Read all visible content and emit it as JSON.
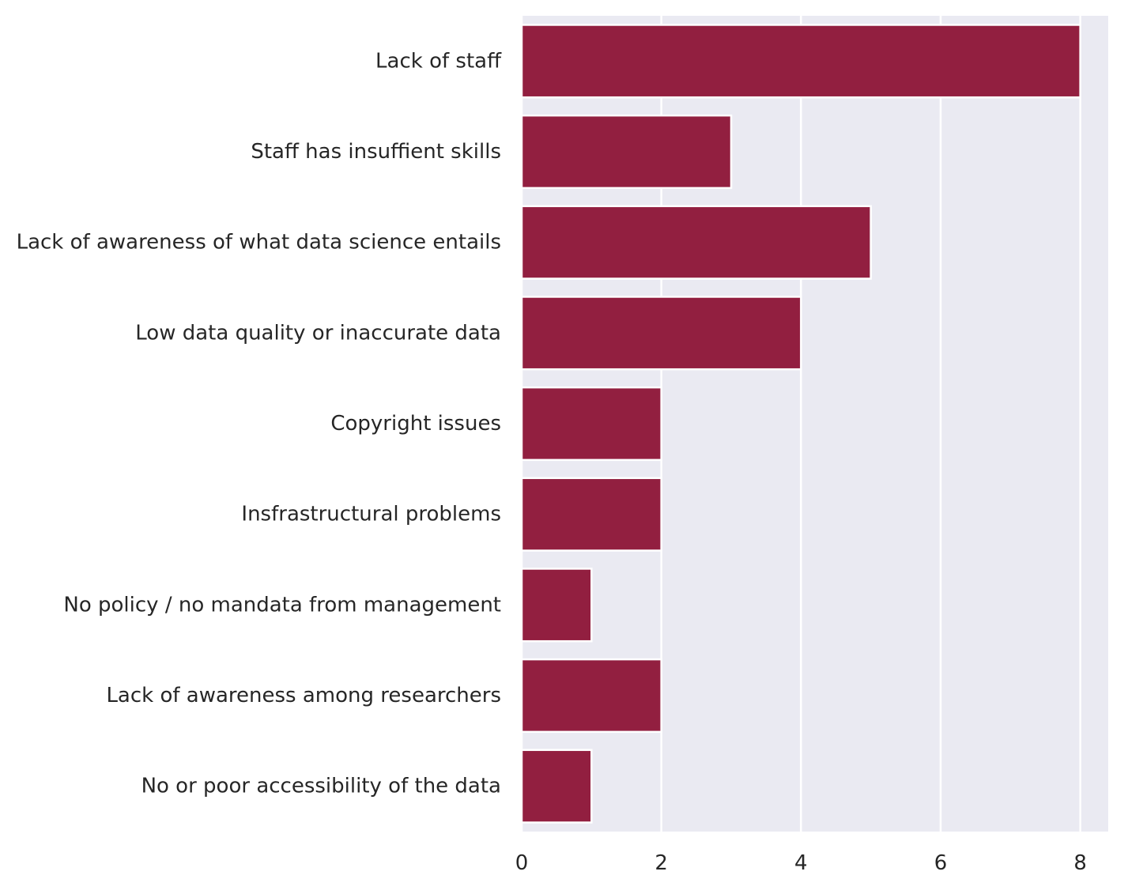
{
  "colors": {
    "background": "#EAEAF2",
    "grid": "#FFFFFF",
    "bar": "#921F40",
    "bar_edge": "#FFFFFF",
    "text": "#262626"
  },
  "chart_data": {
    "type": "bar",
    "orientation": "horizontal",
    "categories": [
      "Lack of staff",
      "Staff has insuffient skills",
      "Lack of awareness of what data science entails",
      "Low data quality or inaccurate data",
      "Copyright issues",
      "Insfrastructural problems",
      "No policy / no mandata from management",
      "Lack of awareness among researchers",
      "No or poor accessibility of the data"
    ],
    "values": [
      8,
      3,
      5,
      4,
      2,
      2,
      1,
      2,
      1
    ],
    "title": "",
    "xlabel": "",
    "ylabel": "",
    "xlim": [
      0,
      8.4
    ],
    "xticks": [
      0,
      2,
      4,
      6,
      8
    ],
    "xtick_labels": [
      "0",
      "2",
      "4",
      "6",
      "8"
    ],
    "grid": true,
    "legend": "none"
  }
}
